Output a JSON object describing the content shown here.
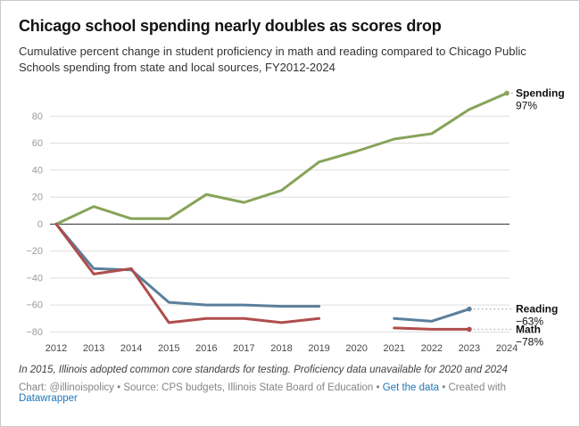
{
  "header": {
    "title": "Chicago school spending nearly doubles as scores drop",
    "subtitle": "Cumulative percent change in student proficiency in math and reading compared to Chicago Public Schools spending from state and local sources, FY2012-2024"
  },
  "chart_data": {
    "type": "line",
    "title": "Chicago school spending nearly doubles as scores drop",
    "x": [
      2012,
      2013,
      2014,
      2015,
      2016,
      2017,
      2018,
      2019,
      2020,
      2021,
      2022,
      2023,
      2024
    ],
    "series": [
      {
        "name": "Spending",
        "color": "#87a359",
        "end_value_label": "97%",
        "values": [
          0,
          13,
          4,
          4,
          22,
          16,
          25,
          46,
          54,
          63,
          67,
          85,
          97
        ]
      },
      {
        "name": "Reading",
        "color": "#5b7f9b",
        "end_value_label": "−63%",
        "values": [
          0,
          -33,
          -34,
          -58,
          -60,
          -60,
          -61,
          -61,
          null,
          -70,
          -72,
          -63,
          null
        ]
      },
      {
        "name": "Math",
        "color": "#b04d4d",
        "end_value_label": "−78%",
        "values": [
          0,
          -37,
          -33,
          -73,
          -70,
          -70,
          -73,
          -70,
          null,
          -77,
          -78,
          -78,
          null
        ]
      }
    ],
    "ylim": [
      -85,
      100
    ],
    "yticks": [
      80,
      60,
      40,
      20,
      0,
      -20,
      -40,
      -60,
      -80
    ],
    "grid": true,
    "legend_position": "right-end-labels",
    "xlabel": "",
    "ylabel": ""
  },
  "footnote": "In 2015, Illinois adopted common core standards for testing. Proficiency data unavailable for 2020 and 2024",
  "byline": {
    "prefix": "Chart: @illinoispolicy • Source: CPS budgets, Illinois State Board of Education • ",
    "get_data_link": "Get the data",
    "middle": " • Created with ",
    "datawrapper_link": "Datawrapper"
  }
}
